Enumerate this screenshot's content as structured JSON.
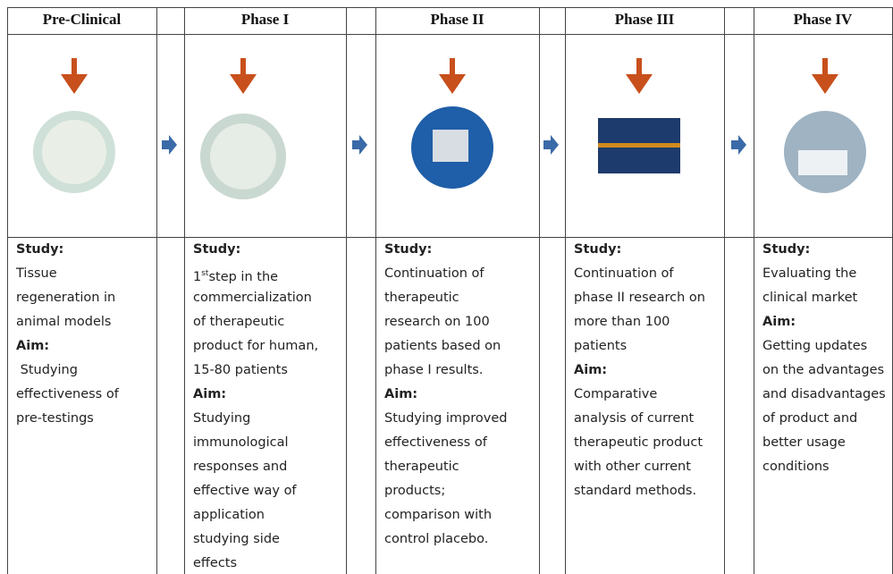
{
  "header": {
    "columns": [
      "Pre-Clinical",
      "Phase I",
      "Phase II",
      "Phase III",
      "Phase IV"
    ]
  },
  "columns": [
    {
      "study_label": "Study:",
      "study": [
        "Tissue",
        "regeneration in",
        "animal models"
      ],
      "aim_label": "Aim:",
      "aim": [
        " Studying",
        "effectiveness of",
        "pre-testings"
      ]
    },
    {
      "study_label": "Study:",
      "study": [
        {
          "pre": "1",
          "sup": "st",
          "post": "step in the"
        },
        "commercialization",
        "of therapeutic",
        "product for human,",
        "15-80 patients"
      ],
      "aim_label": "Aim:",
      "aim": [
        "Studying",
        "immunological",
        "responses and",
        "effective way of",
        "application",
        "studying side",
        "effects"
      ]
    },
    {
      "study_label": "Study:",
      "study": [
        "Continuation of",
        "therapeutic",
        "research on 100",
        "patients based on",
        "phase I results."
      ],
      "aim_label": "Aim:",
      "aim": [
        "Studying improved",
        "effectiveness of",
        "therapeutic",
        "products;",
        "comparison with",
        "control placebo."
      ]
    },
    {
      "study_label": "Study:",
      "study": [
        "Continuation of",
        "phase II research on",
        "more than 100",
        "patients"
      ],
      "aim_label": "Aim:",
      "aim": [
        "Comparative",
        "analysis of current",
        "therapeutic product",
        "with other current",
        "standard methods."
      ]
    },
    {
      "study_label": "Study:",
      "study": [
        "Evaluating the",
        "clinical market"
      ],
      "aim_label": "Aim:",
      "aim": [
        "Getting updates",
        "on the advantages",
        "and disadvantages",
        "of product and",
        "better usage",
        "conditions"
      ]
    }
  ]
}
